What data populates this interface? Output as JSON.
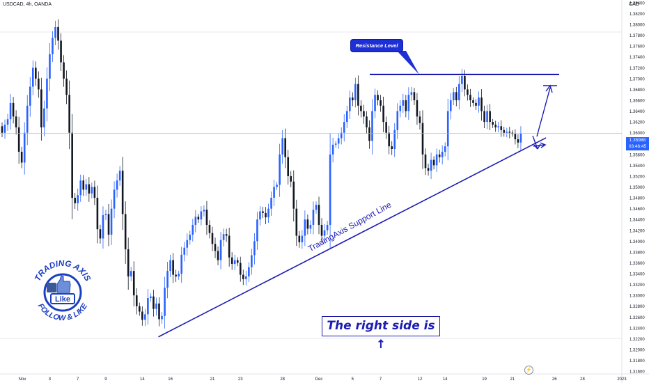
{
  "header": {
    "symbol_line": "USDCAD, 4h, OANDA"
  },
  "price_axis_unit": "CAD",
  "current_price": {
    "value": "1.35988",
    "countdown": "03:46:45",
    "color": "#2962ff"
  },
  "annotations": {
    "resistance_label": "Resistance Level",
    "support_label": "TradingAxis Support Line",
    "right_side_text": "The right side is ↑"
  },
  "logo": {
    "top_text": "TRADING AXIS",
    "bottom_text": "FOLLOW & LIKE",
    "center_text": "Like"
  },
  "colors": {
    "up": "#2962ff",
    "down": "#131722",
    "lines": "#1c1cb3",
    "accent": "#1e2fd6"
  },
  "chart_data": {
    "type": "candlestick",
    "symbol": "USDCAD",
    "timeframe": "4h",
    "y_ticks": [
      "1.38400",
      "1.38200",
      "1.38000",
      "1.37800",
      "1.37600",
      "1.37400",
      "1.37200",
      "1.37000",
      "1.36800",
      "1.36600",
      "1.36400",
      "1.36200",
      "1.36000",
      "1.35800",
      "1.35600",
      "1.35400",
      "1.35200",
      "1.35000",
      "1.34800",
      "1.34600",
      "1.34400",
      "1.34200",
      "1.34000",
      "1.33800",
      "1.33600",
      "1.33400",
      "1.33200",
      "1.33000",
      "1.32800",
      "1.32600",
      "1.32400",
      "1.32200",
      "1.32000",
      "1.31800",
      "1.31600"
    ],
    "y_range": [
      1.3155,
      1.3845
    ],
    "x_ticks": [
      "Nov",
      "3",
      "7",
      "9",
      "14",
      "16",
      "21",
      "23",
      "28",
      "Dec",
      "5",
      "7",
      "12",
      "14",
      "19",
      "21",
      "26",
      "28",
      "2023"
    ],
    "x_tick_index": [
      -1,
      17,
      27,
      37,
      50,
      60,
      75,
      85,
      100,
      113,
      125,
      135,
      149,
      158,
      172,
      182,
      197,
      207,
      221
    ],
    "candle_count": 190,
    "resistance_level": 1.37076,
    "support_line": {
      "from": {
        "index": 57,
        "price": 1.3226
      },
      "to": {
        "index": 190,
        "price": 1.35868
      }
    },
    "closes": [
      1.36,
      1.3615,
      1.3625,
      1.3655,
      1.363,
      1.361,
      1.3565,
      1.3545,
      1.36,
      1.365,
      1.3685,
      1.372,
      1.37,
      1.368,
      1.361,
      1.3645,
      1.37,
      1.3745,
      1.3775,
      1.3795,
      1.377,
      1.373,
      1.37,
      1.367,
      1.36,
      1.348,
      1.347,
      1.3485,
      1.3512,
      1.3495,
      1.3505,
      1.3488,
      1.35,
      1.348,
      1.3422,
      1.3405,
      1.3448,
      1.345,
      1.3412,
      1.346,
      1.3495,
      1.3512,
      1.353,
      1.345,
      1.3385,
      1.3335,
      1.3345,
      1.33,
      1.328,
      1.327,
      1.3255,
      1.3265,
      1.3295,
      1.3298,
      1.3275,
      1.3285,
      1.3256,
      1.3262,
      1.3314,
      1.3345,
      1.3365,
      1.3338,
      1.3335,
      1.334,
      1.3375,
      1.3388,
      1.3402,
      1.3412,
      1.343,
      1.3445,
      1.344,
      1.3455,
      1.3458,
      1.343,
      1.3415,
      1.3395,
      1.3382,
      1.3365,
      1.3402,
      1.3413,
      1.341,
      1.337,
      1.3358,
      1.3365,
      1.336,
      1.3338,
      1.333,
      1.3335,
      1.3352,
      1.3374,
      1.34,
      1.344,
      1.3455,
      1.3452,
      1.3444,
      1.346,
      1.348,
      1.35,
      1.3504,
      1.356,
      1.359,
      1.3555,
      1.352,
      1.351,
      1.346,
      1.341,
      1.3398,
      1.341,
      1.344,
      1.3423,
      1.343,
      1.3458,
      1.3467,
      1.343,
      1.341,
      1.342,
      1.343,
      1.356,
      1.3578,
      1.358,
      1.359,
      1.36,
      1.362,
      1.364,
      1.3665,
      1.366,
      1.369,
      1.365,
      1.364,
      1.363,
      1.361,
      1.3585,
      1.364,
      1.367,
      1.366,
      1.365,
      1.362,
      1.36,
      1.3575,
      1.357,
      1.3605,
      1.364,
      1.365,
      1.366,
      1.364,
      1.367,
      1.3675,
      1.366,
      1.363,
      1.3618,
      1.356,
      1.3535,
      1.353,
      1.355,
      1.354,
      1.356,
      1.3555,
      1.3565,
      1.3575,
      1.364,
      1.366,
      1.3675,
      1.366,
      1.369,
      1.3705,
      1.368,
      1.367,
      1.366,
      1.3655,
      1.365,
      1.3665,
      1.364,
      1.362,
      1.364,
      1.362,
      1.3615,
      1.361,
      1.3612,
      1.3605,
      1.36,
      1.3602,
      1.36,
      1.3598,
      1.3588,
      1.3582,
      1.35988
    ]
  }
}
